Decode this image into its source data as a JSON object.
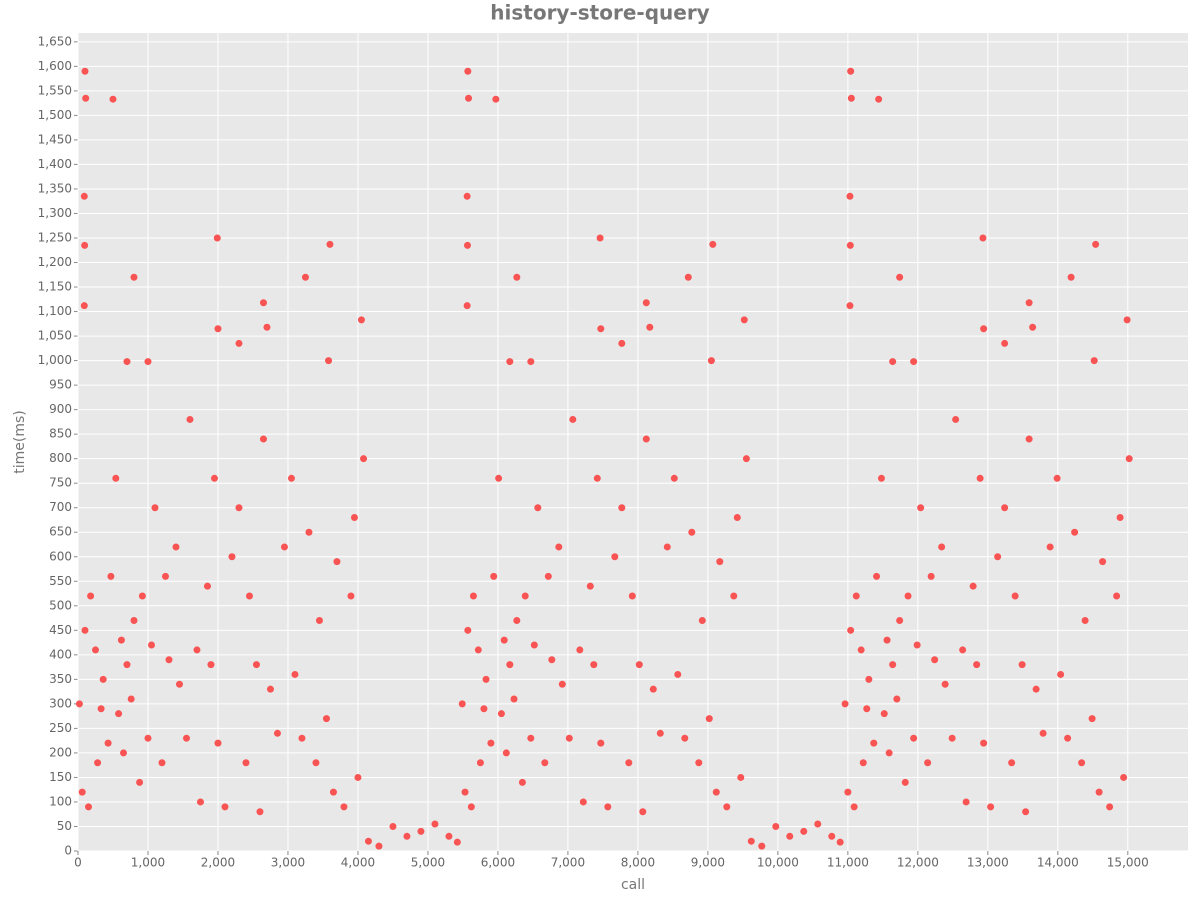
{
  "chart_data": {
    "type": "scatter",
    "title": "history-store-query",
    "x_label": "call",
    "y_label": "time(ms)",
    "grid": true,
    "color": "#f95454",
    "xlim": [
      0,
      15860
    ],
    "ylim": [
      0,
      1668
    ],
    "xticks": [
      0,
      {
        "value": 1000,
        "label": "1,000"
      },
      {
        "value": 2000,
        "label": "2,000"
      },
      {
        "value": 3000,
        "label": "3,000"
      },
      {
        "value": 4000,
        "label": "4,000"
      },
      {
        "value": 5000,
        "label": "5,000"
      },
      {
        "value": 6000,
        "label": "6,000"
      },
      {
        "value": 7000,
        "label": "7,000"
      },
      {
        "value": 8000,
        "label": "8,000"
      },
      {
        "value": 9000,
        "label": "9,000"
      },
      {
        "value": 10000,
        "label": "10,000"
      },
      {
        "value": 11000,
        "label": "11,000"
      },
      {
        "value": 12000,
        "label": "12,000"
      },
      {
        "value": 13000,
        "label": "13,000"
      },
      {
        "value": 14000,
        "label": "14,000"
      },
      {
        "value": 15000,
        "label": "15,000"
      }
    ],
    "yticks": [
      0,
      50,
      100,
      150,
      200,
      250,
      300,
      350,
      400,
      450,
      500,
      550,
      600,
      650,
      700,
      750,
      800,
      850,
      900,
      950,
      {
        "value": 1000,
        "label": "1,000"
      },
      {
        "value": 1050,
        "label": "1,050"
      },
      {
        "value": 1100,
        "label": "1,100"
      },
      {
        "value": 1150,
        "label": "1,150"
      },
      {
        "value": 1200,
        "label": "1,200"
      },
      {
        "value": 1250,
        "label": "1,250"
      },
      {
        "value": 1300,
        "label": "1,300"
      },
      {
        "value": 1350,
        "label": "1,350"
      },
      {
        "value": 1400,
        "label": "1,400"
      },
      {
        "value": 1450,
        "label": "1,450"
      },
      {
        "value": 1500,
        "label": "1,500"
      },
      {
        "value": 1550,
        "label": "1,550"
      },
      {
        "value": 1600,
        "label": "1,600"
      },
      {
        "value": 1650,
        "label": "1,650"
      }
    ],
    "x": [
      20,
      60,
      100,
      150,
      180,
      250,
      280,
      330,
      360,
      430,
      470,
      540,
      580,
      620,
      650,
      700,
      760,
      800,
      880,
      920,
      1000,
      1050,
      1100,
      1200,
      1250,
      1300,
      1400,
      1450,
      1550,
      1600,
      1700,
      1750,
      1850,
      1900,
      1950,
      2000,
      2100,
      2200,
      2300,
      2400,
      2450,
      2550,
      2600,
      2650,
      2750,
      2850,
      2950,
      3050,
      3100,
      3200,
      3300,
      3400,
      3450,
      3550,
      3650,
      3700,
      3800,
      3900,
      3950,
      4000,
      4080,
      100,
      110,
      500,
      90,
      95,
      90,
      800,
      1990,
      2000,
      2300,
      2650,
      2700,
      3250,
      3600,
      4050,
      700,
      1000,
      3580,
      4150,
      4300,
      4500,
      4700,
      4900,
      5100,
      5300,
      5420,
      5490,
      5530,
      5570,
      5620,
      5650,
      5720,
      5750,
      5800,
      5830,
      5900,
      5940,
      6010,
      6050,
      6090,
      6120,
      6170,
      6230,
      6270,
      6350,
      6390,
      6470,
      6520,
      6570,
      6670,
      6720,
      6770,
      6870,
      6920,
      7020,
      7070,
      7170,
      7220,
      7320,
      7370,
      7420,
      7470,
      7570,
      7670,
      7770,
      7870,
      7920,
      8020,
      8070,
      8120,
      8220,
      8320,
      8420,
      8520,
      8570,
      8670,
      8770,
      8870,
      8920,
      9020,
      9120,
      9170,
      9270,
      9370,
      9420,
      9470,
      9550,
      5570,
      5580,
      5970,
      5560,
      5565,
      5560,
      6270,
      7460,
      7470,
      7770,
      8120,
      8170,
      8720,
      9070,
      9520,
      6170,
      6470,
      9050,
      9620,
      9770,
      9970,
      10170,
      10370,
      10570,
      10770,
      10890,
      10960,
      11000,
      11040,
      11090,
      11120,
      11190,
      11220,
      11270,
      11300,
      11370,
      11410,
      11480,
      11520,
      11560,
      11590,
      11640,
      11700,
      11740,
      11820,
      11860,
      11940,
      11990,
      12040,
      12140,
      12190,
      12240,
      12340,
      12390,
      12490,
      12540,
      12640,
      12690,
      12790,
      12840,
      12890,
      12940,
      13040,
      13140,
      13240,
      13340,
      13390,
      13490,
      13540,
      13590,
      13690,
      13790,
      13890,
      13990,
      14040,
      14140,
      14240,
      14340,
      14390,
      14490,
      14590,
      14640,
      14740,
      14840,
      14890,
      14940,
      15020,
      11040,
      11050,
      11440,
      11030,
      11035,
      11030,
      11740,
      12930,
      12940,
      13240,
      13590,
      13640,
      14190,
      14540,
      14990,
      11640,
      11940,
      14520
    ],
    "y": [
      300,
      120,
      450,
      90,
      520,
      410,
      180,
      290,
      350,
      220,
      560,
      760,
      280,
      430,
      200,
      380,
      310,
      470,
      140,
      520,
      230,
      420,
      700,
      180,
      560,
      390,
      620,
      340,
      230,
      880,
      410,
      100,
      540,
      380,
      760,
      220,
      90,
      600,
      700,
      180,
      520,
      380,
      80,
      840,
      330,
      240,
      620,
      760,
      360,
      230,
      650,
      180,
      470,
      270,
      120,
      590,
      90,
      520,
      680,
      150,
      800,
      1590,
      1535,
      1533,
      1335,
      1235,
      1112,
      1170,
      1250,
      1065,
      1035,
      1118,
      1068,
      1170,
      1237,
      1083,
      998,
      998,
      1000,
      20,
      10,
      50,
      30,
      40,
      55,
      30,
      18,
      300,
      120,
      450,
      90,
      520,
      410,
      180,
      290,
      350,
      220,
      560,
      760,
      280,
      430,
      200,
      380,
      310,
      470,
      140,
      520,
      230,
      420,
      700,
      180,
      560,
      390,
      620,
      340,
      230,
      880,
      410,
      100,
      540,
      380,
      760,
      220,
      90,
      600,
      700,
      180,
      520,
      380,
      80,
      840,
      330,
      240,
      620,
      760,
      360,
      230,
      650,
      180,
      470,
      270,
      120,
      590,
      90,
      520,
      680,
      150,
      800,
      1590,
      1535,
      1533,
      1335,
      1235,
      1112,
      1170,
      1250,
      1065,
      1035,
      1118,
      1068,
      1170,
      1237,
      1083,
      998,
      998,
      1000,
      20,
      10,
      50,
      30,
      40,
      55,
      30,
      18,
      300,
      120,
      450,
      90,
      520,
      410,
      180,
      290,
      350,
      220,
      560,
      760,
      280,
      430,
      200,
      380,
      310,
      470,
      140,
      520,
      230,
      420,
      700,
      180,
      560,
      390,
      620,
      340,
      230,
      880,
      410,
      100,
      540,
      380,
      760,
      220,
      90,
      600,
      700,
      180,
      520,
      380,
      80,
      840,
      330,
      240,
      620,
      760,
      360,
      230,
      650,
      180,
      470,
      270,
      120,
      590,
      90,
      520,
      680,
      150,
      800,
      1590,
      1535,
      1533,
      1335,
      1235,
      1112,
      1170,
      1250,
      1065,
      1035,
      1118,
      1068,
      1170,
      1237,
      1083,
      998,
      998,
      1000
    ]
  }
}
